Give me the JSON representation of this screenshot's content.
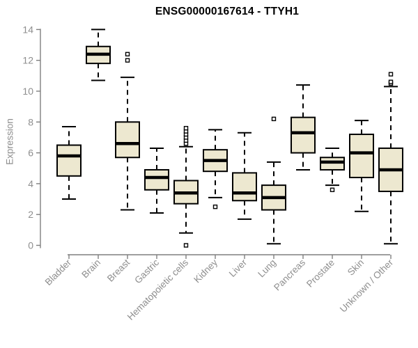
{
  "page": {
    "title": "ENSG00000167614 - TTYH1"
  },
  "chart_data": {
    "type": "boxplot",
    "title": "ENSG00000167614 - TTYH1",
    "xlabel": "",
    "ylabel": "Expression",
    "ylim": [
      0,
      14
    ],
    "yticks": [
      0,
      2,
      4,
      6,
      8,
      10,
      12,
      14
    ],
    "grid": false,
    "legend": "none",
    "categories": [
      "Bladder",
      "Brain",
      "Breast",
      "Gastric",
      "Hematopoietic cells",
      "Kidney",
      "Liver",
      "Lung",
      "Pancreas",
      "Prostate",
      "Skin",
      "Unknown / Other"
    ],
    "series": [
      {
        "category": "Bladder",
        "whisker_low": 3.0,
        "q1": 4.5,
        "median": 5.8,
        "q3": 6.5,
        "whisker_high": 7.7,
        "outliers": []
      },
      {
        "category": "Brain",
        "whisker_low": 10.7,
        "q1": 11.8,
        "median": 12.4,
        "q3": 12.9,
        "whisker_high": 14.0,
        "outliers": []
      },
      {
        "category": "Breast",
        "whisker_low": 2.3,
        "q1": 5.7,
        "median": 6.6,
        "q3": 8.0,
        "whisker_high": 10.9,
        "outliers": [
          12.0,
          12.4
        ]
      },
      {
        "category": "Gastric",
        "whisker_low": 2.1,
        "q1": 3.6,
        "median": 4.4,
        "q3": 4.9,
        "whisker_high": 6.3,
        "outliers": []
      },
      {
        "category": "Hematopoietic cells",
        "whisker_low": 0.8,
        "q1": 2.7,
        "median": 3.4,
        "q3": 4.2,
        "whisker_high": 6.4,
        "outliers": [
          6.6,
          6.8,
          7.0,
          7.2,
          7.4,
          7.6,
          0.0
        ]
      },
      {
        "category": "Kidney",
        "whisker_low": 3.1,
        "q1": 4.8,
        "median": 5.5,
        "q3": 6.2,
        "whisker_high": 7.5,
        "outliers": [
          2.5
        ]
      },
      {
        "category": "Liver",
        "whisker_low": 1.7,
        "q1": 2.9,
        "median": 3.4,
        "q3": 4.7,
        "whisker_high": 7.3,
        "outliers": []
      },
      {
        "category": "Lung",
        "whisker_low": 0.1,
        "q1": 2.3,
        "median": 3.1,
        "q3": 3.9,
        "whisker_high": 5.4,
        "outliers": [
          8.2
        ]
      },
      {
        "category": "Pancreas",
        "whisker_low": 4.9,
        "q1": 6.0,
        "median": 7.3,
        "q3": 8.3,
        "whisker_high": 10.4,
        "outliers": []
      },
      {
        "category": "Prostate",
        "whisker_low": 3.9,
        "q1": 4.9,
        "median": 5.4,
        "q3": 5.7,
        "whisker_high": 6.3,
        "outliers": [
          3.6
        ]
      },
      {
        "category": "Skin",
        "whisker_low": 2.2,
        "q1": 4.4,
        "median": 6.0,
        "q3": 7.2,
        "whisker_high": 8.1,
        "outliers": []
      },
      {
        "category": "Unknown / Other",
        "whisker_low": 0.1,
        "q1": 3.5,
        "median": 4.9,
        "q3": 6.3,
        "whisker_high": 10.3,
        "outliers": [
          10.5,
          10.6,
          11.1
        ]
      }
    ],
    "style": {
      "box_fill": "#EDE8D0",
      "box_border": "#000000",
      "median_color": "#000000",
      "whisker_style": "dashed",
      "outlier_marker": "open-square",
      "axis_color": "#7F7F7F",
      "label_color": "#8E8E8E",
      "title_color": "#000000",
      "background": "#FFFFFF"
    }
  }
}
